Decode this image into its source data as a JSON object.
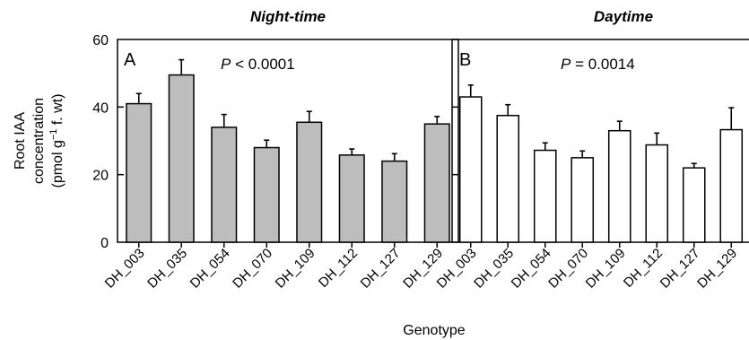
{
  "chart_data": [
    {
      "type": "bar",
      "panel_label": "A",
      "title": "Night-time",
      "p_prefix": "P",
      "p_rest": " < 0.0001",
      "categories": [
        "DH_003",
        "DH_035",
        "DH_054",
        "DH_070",
        "DH_109",
        "DH_112",
        "DH_127",
        "DH_129"
      ],
      "values": [
        41,
        49.5,
        34,
        28,
        35.5,
        25.8,
        24,
        35
      ],
      "errors": [
        3,
        4.5,
        3.8,
        2.2,
        3.2,
        1.8,
        2.2,
        2.2
      ],
      "bar_color": "#bdbdbd",
      "ylabel_lines": [
        "Root IAA",
        "concentration",
        "(pmol g",
        "−1",
        " f. wt)"
      ],
      "yticks": [
        0,
        20,
        40,
        60
      ],
      "ylim": [
        0,
        60
      ]
    },
    {
      "type": "bar",
      "panel_label": "B",
      "title": "Daytime",
      "p_prefix": "P",
      "p_rest": " = 0.0014",
      "categories": [
        "DH_003",
        "DH_035",
        "DH_054",
        "DH_070",
        "DH_109",
        "DH_112",
        "DH_127",
        "DH_129"
      ],
      "values": [
        43,
        37.5,
        27.2,
        25,
        33,
        28.8,
        22,
        33.3
      ],
      "errors": [
        3.5,
        3.2,
        2.2,
        2,
        2.8,
        3.5,
        1.3,
        6.5
      ],
      "bar_color": "#ffffff",
      "yticks": [
        0,
        20,
        40,
        60
      ],
      "ylim": [
        0,
        60
      ]
    }
  ],
  "xlabel": "Genotype"
}
